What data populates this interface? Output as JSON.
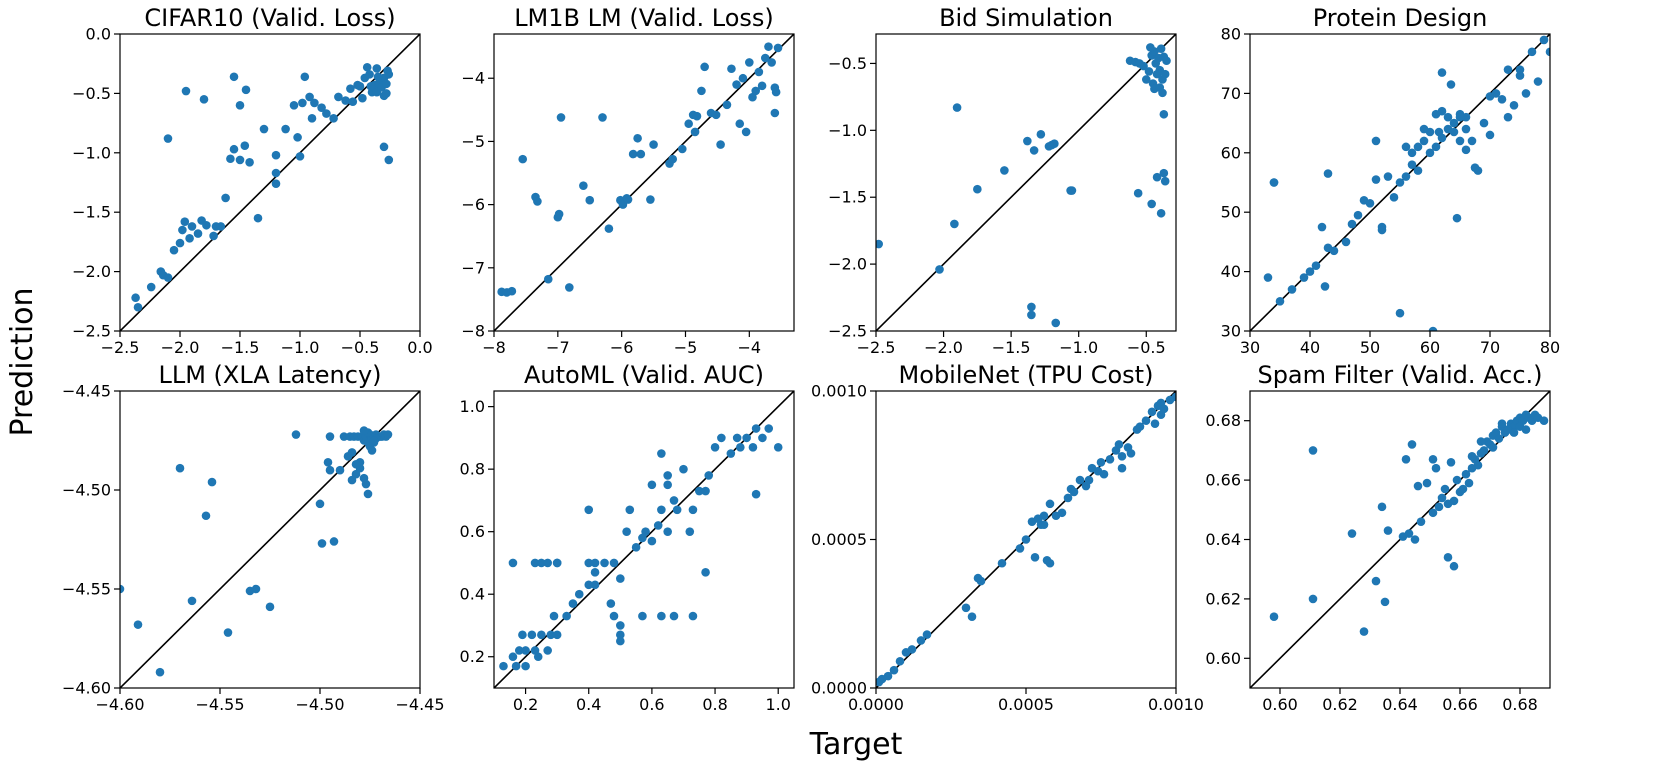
{
  "figure": {
    "ylabel": "Prediction",
    "xlabel": "Target",
    "point_color": "#1f77b4",
    "line_color": "#000000"
  },
  "chart_data": [
    {
      "type": "scatter",
      "title": "CIFAR10 (Valid. Loss)",
      "xlim": [
        -2.5,
        0.0
      ],
      "ylim": [
        -2.5,
        0.0
      ],
      "xticks": [
        -2.5,
        -2.0,
        -1.5,
        -1.0,
        -0.5,
        0.0
      ],
      "xtick_labels": [
        "−2.5",
        "−2.0",
        "−1.5",
        "−1.0",
        "−0.5",
        "0.0"
      ],
      "yticks": [
        -2.5,
        -2.0,
        -1.5,
        -1.0,
        -0.5,
        0.0
      ],
      "ytick_labels": [
        "−2.5",
        "−2.0",
        "−1.5",
        "−1.0",
        "−0.5",
        "0.0"
      ],
      "diagonal": true,
      "x": [
        -2.37,
        -2.35,
        -2.24,
        -2.16,
        -2.14,
        -2.1,
        -2.05,
        -2.0,
        -1.98,
        -1.96,
        -1.92,
        -1.9,
        -1.85,
        -1.82,
        -1.78,
        -1.72,
        -1.7,
        -1.66,
        -1.62,
        -1.58,
        -1.55,
        -1.5,
        -1.46,
        -1.42,
        -1.35,
        -1.2,
        -1.2,
        -1.2,
        -1.12,
        -1.05,
        -1.02,
        -0.98,
        -0.92,
        -0.88,
        -0.82,
        -0.78,
        -0.72,
        -0.68,
        -0.62,
        -0.58,
        -0.52,
        -0.5,
        -0.46,
        -0.42,
        -0.4,
        -0.38,
        -0.36,
        -0.34,
        -0.32,
        -0.3,
        -0.28,
        -0.27,
        -0.26,
        -0.44,
        -0.36,
        -0.3,
        -0.28,
        -0.35,
        -0.48,
        -0.41,
        -1.55,
        -1.95,
        -1.8,
        -1.45,
        -2.1,
        -0.96,
        -1.0,
        -0.3,
        -0.26,
        -1.3,
        -1.5,
        -0.56,
        -0.9
      ],
      "y": [
        -2.22,
        -2.3,
        -2.13,
        -2.0,
        -2.03,
        -2.05,
        -1.82,
        -1.76,
        -1.65,
        -1.58,
        -1.72,
        -1.62,
        -1.68,
        -1.57,
        -1.61,
        -1.7,
        -1.62,
        -1.62,
        -1.38,
        -1.05,
        -0.97,
        -1.06,
        -0.94,
        -1.08,
        -1.55,
        -1.26,
        -1.17,
        -1.02,
        -0.8,
        -0.6,
        -0.87,
        -0.58,
        -0.53,
        -0.58,
        -0.62,
        -0.67,
        -0.71,
        -0.53,
        -0.56,
        -0.46,
        -0.43,
        -0.44,
        -0.37,
        -0.34,
        -0.49,
        -0.43,
        -0.49,
        -0.41,
        -0.45,
        -0.37,
        -0.42,
        -0.31,
        -0.34,
        -0.28,
        -0.29,
        -0.52,
        -0.5,
        -0.36,
        -0.54,
        -0.44,
        -0.36,
        -0.48,
        -0.55,
        -0.47,
        -0.88,
        -0.36,
        -1.03,
        -0.95,
        -1.06,
        -0.8,
        -0.6,
        -0.57,
        -0.71
      ]
    },
    {
      "type": "scatter",
      "title": "LM1B LM (Valid. Loss)",
      "xlim": [
        -8.0,
        -3.3
      ],
      "ylim": [
        -8.0,
        -3.3
      ],
      "xticks": [
        -8,
        -7,
        -6,
        -5,
        -4
      ],
      "xtick_labels": [
        "−8",
        "−7",
        "−6",
        "−5",
        "−4"
      ],
      "yticks": [
        -8,
        -7,
        -6,
        -5,
        -4
      ],
      "ytick_labels": [
        "−8",
        "−7",
        "−6",
        "−5",
        "−4"
      ],
      "diagonal": true,
      "x": [
        -7.88,
        -7.8,
        -7.72,
        -7.15,
        -6.82,
        -7.35,
        -7.32,
        -7.0,
        -6.98,
        -6.95,
        -6.6,
        -6.5,
        -6.3,
        -6.02,
        -5.98,
        -5.92,
        -5.9,
        -5.82,
        -5.75,
        -5.55,
        -5.5,
        -5.25,
        -5.2,
        -5.05,
        -4.95,
        -4.88,
        -4.85,
        -4.82,
        -4.7,
        -4.6,
        -4.52,
        -4.45,
        -4.35,
        -4.28,
        -4.2,
        -4.1,
        -4.05,
        -4.0,
        -3.95,
        -3.9,
        -3.85,
        -3.8,
        -3.75,
        -3.7,
        -3.65,
        -3.6,
        -3.55,
        -7.55,
        -6.2,
        -5.7,
        -4.75,
        -4.15,
        -3.6,
        -3.58
      ],
      "y": [
        -7.38,
        -7.39,
        -7.37,
        -7.18,
        -7.31,
        -5.88,
        -5.95,
        -6.2,
        -6.15,
        -4.62,
        -5.7,
        -5.93,
        -4.62,
        -5.93,
        -6.0,
        -5.9,
        -5.92,
        -5.2,
        -4.95,
        -5.92,
        -5.05,
        -5.35,
        -5.28,
        -5.12,
        -4.72,
        -4.58,
        -4.85,
        -4.6,
        -3.82,
        -4.55,
        -4.58,
        -5.05,
        -4.42,
        -3.85,
        -4.1,
        -4.0,
        -4.85,
        -3.75,
        -4.3,
        -4.2,
        -3.9,
        -4.12,
        -3.68,
        -3.5,
        -3.75,
        -4.15,
        -3.52,
        -5.28,
        -6.38,
        -5.2,
        -4.2,
        -4.72,
        -4.55,
        -4.22
      ]
    },
    {
      "type": "scatter",
      "title": "Bid Simulation",
      "xlim": [
        -2.5,
        -0.28
      ],
      "ylim": [
        -2.5,
        -0.28
      ],
      "xticks": [
        -2.5,
        -2.0,
        -1.5,
        -1.0,
        -0.5
      ],
      "xtick_labels": [
        "−2.5",
        "−2.0",
        "−1.5",
        "−1.0",
        "−0.5"
      ],
      "yticks": [
        -2.5,
        -2.0,
        -1.5,
        -1.0,
        -0.5
      ],
      "ytick_labels": [
        "−2.5",
        "−2.0",
        "−1.5",
        "−1.0",
        "−0.5"
      ],
      "diagonal": true,
      "x": [
        -2.48,
        -2.03,
        -1.92,
        -1.9,
        -1.75,
        -1.55,
        -1.38,
        -1.33,
        -1.28,
        -1.22,
        -1.2,
        -1.18,
        -1.06,
        -0.62,
        -0.58,
        -0.56,
        -0.52,
        -0.5,
        -0.48,
        -0.46,
        -0.45,
        -0.44,
        -0.43,
        -0.42,
        -0.41,
        -0.4,
        -0.39,
        -0.38,
        -0.37,
        -0.36,
        -0.35,
        -0.47,
        -0.44,
        -0.4,
        -0.38,
        -0.37,
        -0.55,
        -0.46,
        -0.42,
        -0.39,
        -1.35,
        -1.35,
        -1.17,
        -1.05,
        -0.37,
        -0.36
      ],
      "y": [
        -1.85,
        -2.04,
        -1.7,
        -0.83,
        -1.44,
        -1.3,
        -1.08,
        -1.15,
        -1.03,
        -1.12,
        -1.11,
        -1.1,
        -1.45,
        -0.48,
        -0.49,
        -1.47,
        -0.52,
        -0.62,
        -0.56,
        -0.44,
        -0.65,
        -0.41,
        -0.5,
        -0.58,
        -0.46,
        -0.55,
        -0.39,
        -0.62,
        -0.45,
        -0.58,
        -0.48,
        -0.38,
        -0.69,
        -0.68,
        -0.72,
        -0.88,
        -0.5,
        -1.55,
        -1.35,
        -1.62,
        -2.32,
        -2.38,
        -2.44,
        -1.45,
        -1.32,
        -1.38
      ]
    },
    {
      "type": "scatter",
      "title": "Protein Design",
      "xlim": [
        30,
        80
      ],
      "ylim": [
        30,
        80
      ],
      "xticks": [
        30,
        40,
        50,
        60,
        70,
        80
      ],
      "xtick_labels": [
        "30",
        "40",
        "50",
        "60",
        "70",
        "80"
      ],
      "yticks": [
        30,
        40,
        50,
        60,
        70,
        80
      ],
      "ytick_labels": [
        "30",
        "40",
        "50",
        "60",
        "70",
        "80"
      ],
      "diagonal": true,
      "x": [
        33,
        34,
        35,
        37,
        39,
        40,
        41,
        42,
        43,
        44,
        46,
        47,
        48,
        49,
        50,
        51,
        52,
        53,
        54,
        55,
        56,
        57,
        58,
        58,
        59,
        60,
        60,
        61,
        61,
        62,
        62,
        63,
        63,
        64,
        64,
        65,
        65,
        66,
        66,
        67,
        68,
        69,
        70,
        71,
        72,
        73,
        74,
        75,
        76,
        77,
        78,
        79,
        80,
        34,
        42.5,
        43,
        51,
        52,
        55,
        57,
        59,
        60.5,
        61.5,
        62,
        63.5,
        64.5,
        65,
        66,
        67.5,
        70,
        73,
        75,
        56
      ],
      "y": [
        39,
        55,
        35,
        37,
        39,
        40,
        41,
        47.5,
        56.5,
        43.5,
        45,
        48,
        49.5,
        52,
        51.5,
        55.5,
        47.5,
        56,
        52.5,
        55,
        56,
        58,
        57,
        61,
        62,
        60,
        63.5,
        61,
        66.5,
        62.5,
        67,
        64,
        66,
        63.5,
        65,
        62,
        66.5,
        64,
        66,
        62,
        57,
        65,
        63,
        70,
        69,
        66,
        68,
        73,
        70,
        77,
        72,
        79,
        77,
        55,
        37.5,
        44,
        62,
        47,
        33,
        60,
        64,
        30,
        63.5,
        73.5,
        71.5,
        49,
        66,
        60.5,
        57.5,
        69.5,
        74,
        74,
        61
      ]
    },
    {
      "type": "scatter",
      "title": "LLM (XLA Latency)",
      "xlim": [
        -4.6,
        -4.45
      ],
      "ylim": [
        -4.6,
        -4.45
      ],
      "xticks": [
        -4.6,
        -4.55,
        -4.5,
        -4.45
      ],
      "xtick_labels": [
        "−4.60",
        "−4.55",
        "−4.50",
        "−4.45"
      ],
      "yticks": [
        -4.6,
        -4.55,
        -4.5,
        -4.45
      ],
      "ytick_labels": [
        "−4.60",
        "−4.55",
        "−4.50",
        "−4.45"
      ],
      "diagonal": true,
      "x": [
        -4.6,
        -4.591,
        -4.58,
        -4.57,
        -4.564,
        -4.557,
        -4.554,
        -4.546,
        -4.535,
        -4.532,
        -4.525,
        -4.512,
        -4.5,
        -4.499,
        -4.496,
        -4.495,
        -4.493,
        -4.49,
        -4.488,
        -4.486,
        -4.485,
        -4.484,
        -4.483,
        -4.482,
        -4.481,
        -4.48,
        -4.479,
        -4.478,
        -4.477,
        -4.476,
        -4.475,
        -4.474,
        -4.473,
        -4.472,
        -4.471,
        -4.47,
        -4.469,
        -4.468,
        -4.467,
        -4.466,
        -4.478,
        -4.477,
        -4.476,
        -4.48,
        -4.482,
        -4.484,
        -4.495,
        -4.475,
        -4.474,
        -4.473,
        -4.472,
        -4.473,
        -4.476,
        -4.478
      ],
      "y": [
        -4.55,
        -4.568,
        -4.592,
        -4.489,
        -4.556,
        -4.513,
        -4.496,
        -4.572,
        -4.551,
        -4.55,
        -4.559,
        -4.472,
        -4.507,
        -4.527,
        -4.486,
        -4.473,
        -4.526,
        -4.49,
        -4.473,
        -4.483,
        -4.473,
        -4.481,
        -4.473,
        -4.492,
        -4.473,
        -4.486,
        -4.473,
        -4.475,
        -4.473,
        -4.476,
        -4.472,
        -4.474,
        -4.473,
        -4.472,
        -4.473,
        -4.473,
        -4.473,
        -4.472,
        -4.473,
        -4.472,
        -4.494,
        -4.497,
        -4.502,
        -4.489,
        -4.487,
        -4.495,
        -4.49,
        -4.478,
        -4.48,
        -4.476,
        -4.474,
        -4.475,
        -4.471,
        -4.47
      ]
    },
    {
      "type": "scatter",
      "title": "AutoML (Valid. AUC)",
      "xlim": [
        0.1,
        1.05
      ],
      "ylim": [
        0.1,
        1.05
      ],
      "xticks": [
        0.2,
        0.4,
        0.6,
        0.8,
        1.0
      ],
      "xtick_labels": [
        "0.2",
        "0.4",
        "0.6",
        "0.8",
        "1.0"
      ],
      "yticks": [
        0.2,
        0.4,
        0.6,
        0.8,
        1.0
      ],
      "ytick_labels": [
        "0.2",
        "0.4",
        "0.6",
        "0.8",
        "1.0"
      ],
      "diagonal": true,
      "x": [
        0.13,
        0.16,
        0.17,
        0.18,
        0.19,
        0.2,
        0.2,
        0.22,
        0.23,
        0.24,
        0.25,
        0.27,
        0.28,
        0.29,
        0.3,
        0.3,
        0.33,
        0.35,
        0.37,
        0.4,
        0.42,
        0.42,
        0.45,
        0.47,
        0.48,
        0.5,
        0.5,
        0.5,
        0.52,
        0.53,
        0.55,
        0.57,
        0.58,
        0.6,
        0.62,
        0.63,
        0.63,
        0.65,
        0.65,
        0.67,
        0.68,
        0.7,
        0.72,
        0.73,
        0.75,
        0.77,
        0.78,
        0.8,
        0.82,
        0.85,
        0.87,
        0.88,
        0.9,
        0.92,
        0.93,
        0.95,
        0.97,
        1.0,
        0.16,
        0.23,
        0.25,
        0.27,
        0.3,
        0.4,
        0.42,
        0.48,
        0.5,
        0.57,
        0.63,
        0.67,
        0.73,
        0.77,
        0.93,
        0.4,
        0.6,
        0.65
      ],
      "y": [
        0.17,
        0.2,
        0.17,
        0.22,
        0.27,
        0.22,
        0.17,
        0.27,
        0.22,
        0.2,
        0.27,
        0.22,
        0.27,
        0.33,
        0.27,
        0.5,
        0.33,
        0.37,
        0.4,
        0.43,
        0.47,
        0.43,
        0.5,
        0.37,
        0.5,
        0.27,
        0.25,
        0.45,
        0.6,
        0.67,
        0.55,
        0.58,
        0.6,
        0.57,
        0.62,
        0.67,
        0.85,
        0.75,
        0.6,
        0.7,
        0.67,
        0.8,
        0.6,
        0.33,
        0.73,
        0.47,
        0.78,
        0.87,
        0.9,
        0.85,
        0.9,
        0.87,
        0.9,
        0.87,
        0.93,
        0.9,
        0.93,
        0.87,
        0.5,
        0.5,
        0.5,
        0.5,
        0.5,
        0.5,
        0.5,
        0.33,
        0.3,
        0.33,
        0.33,
        0.33,
        0.67,
        0.73,
        0.72,
        0.67,
        0.75,
        0.78
      ]
    },
    {
      "type": "scatter",
      "title": "MobileNet (TPU Cost)",
      "xlim": [
        0.0,
        0.001
      ],
      "ylim": [
        0.0,
        0.001
      ],
      "xticks": [
        0.0,
        0.0005,
        0.001
      ],
      "xtick_labels": [
        "0.0000",
        "0.0005",
        "0.0010"
      ],
      "yticks": [
        0.0,
        0.0005,
        0.001
      ],
      "ytick_labels": [
        "0.0000",
        "0.0005",
        "0.0010"
      ],
      "diagonal": true,
      "x": [
        1e-05,
        2e-05,
        4e-05,
        6e-05,
        8e-05,
        0.0001,
        0.00012,
        0.00015,
        0.00017,
        0.0003,
        0.00032,
        0.00034,
        0.00035,
        0.00042,
        0.00048,
        0.0005,
        0.00052,
        0.00053,
        0.00055,
        0.00056,
        0.00057,
        0.00058,
        0.0006,
        0.00062,
        0.00064,
        0.00065,
        0.00066,
        0.00068,
        0.0007,
        0.00071,
        0.00072,
        0.00074,
        0.00075,
        0.00076,
        0.00078,
        0.0008,
        0.00081,
        0.00082,
        0.00084,
        0.00085,
        0.00087,
        0.00088,
        0.0009,
        0.00092,
        0.00094,
        0.00095,
        0.00096,
        0.00098,
        0.001,
        0.00054,
        0.00056,
        0.00058,
        0.00093,
        0.00095,
        0.00082
      ],
      "y": [
        2e-05,
        3e-05,
        4e-05,
        6e-05,
        9e-05,
        0.00012,
        0.00013,
        0.00016,
        0.00018,
        0.00027,
        0.00024,
        0.00037,
        0.00036,
        0.00042,
        0.00047,
        0.0005,
        0.00056,
        0.00044,
        0.00055,
        0.00058,
        0.00043,
        0.00062,
        0.00058,
        0.00059,
        0.00064,
        0.00067,
        0.00066,
        0.0007,
        0.00068,
        0.0007,
        0.00074,
        0.00073,
        0.00076,
        0.00072,
        0.00077,
        0.0008,
        0.00082,
        0.00078,
        0.00081,
        0.00079,
        0.00087,
        0.00088,
        0.0009,
        0.00093,
        0.00095,
        0.00096,
        0.00094,
        0.00097,
        0.00098,
        0.00057,
        0.00055,
        0.00042,
        0.00089,
        0.00092,
        0.00074
      ]
    },
    {
      "type": "scatter",
      "title": "Spam Filter (Valid. Acc.)",
      "xlim": [
        0.59,
        0.69
      ],
      "ylim": [
        0.59,
        0.69
      ],
      "xticks": [
        0.6,
        0.62,
        0.64,
        0.66,
        0.68
      ],
      "xtick_labels": [
        "0.60",
        "0.62",
        "0.64",
        "0.66",
        "0.68"
      ],
      "yticks": [
        0.6,
        0.62,
        0.64,
        0.66,
        0.68
      ],
      "ytick_labels": [
        "0.60",
        "0.62",
        "0.64",
        "0.66",
        "0.68"
      ],
      "diagonal": true,
      "x": [
        0.598,
        0.611,
        0.611,
        0.624,
        0.628,
        0.632,
        0.634,
        0.635,
        0.636,
        0.641,
        0.643,
        0.645,
        0.646,
        0.647,
        0.649,
        0.651,
        0.652,
        0.653,
        0.654,
        0.655,
        0.656,
        0.657,
        0.658,
        0.659,
        0.66,
        0.661,
        0.662,
        0.663,
        0.664,
        0.665,
        0.666,
        0.667,
        0.668,
        0.669,
        0.67,
        0.671,
        0.672,
        0.673,
        0.674,
        0.675,
        0.676,
        0.677,
        0.678,
        0.679,
        0.68,
        0.681,
        0.682,
        0.683,
        0.684,
        0.685,
        0.686,
        0.688,
        0.642,
        0.644,
        0.651,
        0.656,
        0.658,
        0.664,
        0.667,
        0.671,
        0.674,
        0.676,
        0.678,
        0.68,
        0.682
      ],
      "y": [
        0.614,
        0.62,
        0.67,
        0.642,
        0.609,
        0.626,
        0.651,
        0.619,
        0.643,
        0.641,
        0.642,
        0.64,
        0.658,
        0.646,
        0.659,
        0.649,
        0.664,
        0.651,
        0.654,
        0.657,
        0.634,
        0.666,
        0.631,
        0.66,
        0.656,
        0.657,
        0.662,
        0.659,
        0.664,
        0.667,
        0.665,
        0.669,
        0.67,
        0.673,
        0.672,
        0.675,
        0.676,
        0.674,
        0.678,
        0.676,
        0.677,
        0.679,
        0.678,
        0.68,
        0.681,
        0.68,
        0.682,
        0.681,
        0.68,
        0.682,
        0.681,
        0.68,
        0.667,
        0.672,
        0.667,
        0.652,
        0.653,
        0.668,
        0.673,
        0.671,
        0.679,
        0.677,
        0.676,
        0.678,
        0.677
      ]
    }
  ]
}
